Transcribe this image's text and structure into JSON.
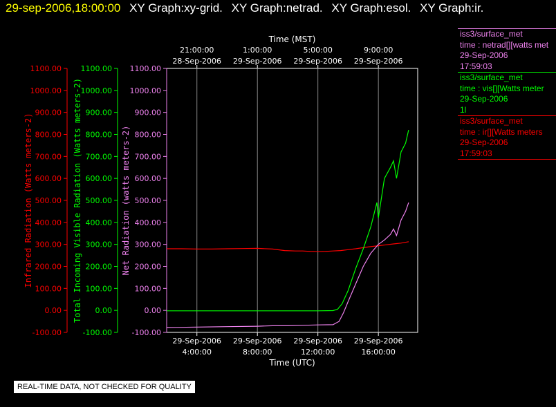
{
  "header": {
    "timestamp": "29-sep-2006,18:00:00",
    "graphs": [
      "XY Graph:xy-grid.",
      "XY Graph:netrad.",
      "XY Graph:esol.",
      "XY Graph:ir."
    ]
  },
  "legend": [
    {
      "title": "iss3/surface_met",
      "var": "time : netrad[][watts met",
      "date": "29-Sep-2006",
      "time": "17:59:03",
      "color": "#ee82ee"
    },
    {
      "title": "iss3/surface_met",
      "var": "time : vis[][Watts meter",
      "date": "29-Sep-2006",
      "time": "1l",
      "color": "#00ff00"
    },
    {
      "title": "iss3/surface_met",
      "var": "time : ir[][Watts meters",
      "date": "29-Sep-2006",
      "time": "17:59:03",
      "color": "#ff0000"
    }
  ],
  "note": "REAL-TIME DATA, NOT CHECKED FOR QUALITY",
  "chart_data": {
    "type": "line",
    "x_unit": "hours UTC since 2006-09-29 00:00",
    "xlim": [
      2.0,
      18.6
    ],
    "ylim": [
      -100,
      1100
    ],
    "grid": true,
    "y_ticks": [
      -100,
      0,
      100,
      200,
      300,
      400,
      500,
      600,
      700,
      800,
      900,
      1000,
      1100
    ],
    "y_tick_labels": [
      "-100.00",
      "0.00",
      "100.00",
      "200.00",
      "300.00",
      "400.00",
      "500.00",
      "600.00",
      "700.00",
      "800.00",
      "900.00",
      "1000.00",
      "1100.00"
    ],
    "y_axes": [
      {
        "label": "Infrared Radiation (Watts meters-2)",
        "color": "#ff0000"
      },
      {
        "label": "Total Incoming Visible Radiation (Watts meters-2)",
        "color": "#00ff00"
      },
      {
        "label": "Net Radiation (watts meters-2)",
        "color": "#ee82ee"
      }
    ],
    "x_axis_bottom": {
      "label": "Time (UTC)",
      "ticks": [
        {
          "x": 4,
          "date": "29-Sep-2006",
          "time": "4:00:00"
        },
        {
          "x": 8,
          "date": "29-Sep-2006",
          "time": "8:00:00"
        },
        {
          "x": 12,
          "date": "29-Sep-2006",
          "time": "12:00:00"
        },
        {
          "x": 16,
          "date": "29-Sep-2006",
          "time": "16:00:00"
        }
      ]
    },
    "x_axis_top": {
      "label": "Time (MST)",
      "ticks": [
        {
          "x": 4,
          "time": "21:00:00",
          "date": "28-Sep-2006"
        },
        {
          "x": 8,
          "time": "1:00:00",
          "date": "29-Sep-2006"
        },
        {
          "x": 12,
          "time": "5:00:00",
          "date": "29-Sep-2006"
        },
        {
          "x": 16,
          "time": "9:00:00",
          "date": "29-Sep-2006"
        }
      ]
    },
    "series": [
      {
        "name": "ir",
        "color": "#ff0000",
        "x": [
          2.0,
          3.0,
          4.0,
          5.0,
          6.0,
          7.0,
          8.0,
          9.0,
          9.8,
          10.5,
          11.0,
          11.5,
          12.0,
          12.5,
          13.0,
          13.5,
          14.0,
          14.5,
          15.0,
          15.5,
          16.0,
          16.5,
          17.0,
          17.5,
          18.0
        ],
        "y": [
          280,
          280,
          279,
          279,
          280,
          281,
          282,
          279,
          272,
          270,
          270,
          268,
          267,
          268,
          270,
          272,
          276,
          280,
          285,
          290,
          294,
          298,
          302,
          306,
          312
        ]
      },
      {
        "name": "vis",
        "color": "#00ff00",
        "x": [
          2.0,
          4.0,
          6.0,
          8.0,
          10.0,
          12.0,
          13.0,
          13.3,
          13.6,
          14.0,
          14.5,
          15.0,
          15.5,
          15.9,
          16.0,
          16.4,
          16.8,
          17.0,
          17.2,
          17.5,
          17.8,
          18.0
        ],
        "y": [
          -2,
          -2,
          -2,
          -2,
          -2,
          -2,
          -1,
          5,
          30,
          90,
          190,
          280,
          380,
          490,
          420,
          600,
          650,
          680,
          600,
          720,
          760,
          820
        ]
      },
      {
        "name": "netrad",
        "color": "#ee82ee",
        "x": [
          2.0,
          4.0,
          6.0,
          8.0,
          9.0,
          10.0,
          11.0,
          12.0,
          13.0,
          13.4,
          13.7,
          14.0,
          14.5,
          15.0,
          15.5,
          16.0,
          16.4,
          16.8,
          17.0,
          17.2,
          17.5,
          17.8,
          18.0
        ],
        "y": [
          -78,
          -76,
          -74,
          -72,
          -70,
          -70,
          -68,
          -66,
          -65,
          -50,
          -10,
          40,
          120,
          200,
          260,
          300,
          320,
          345,
          370,
          340,
          410,
          450,
          490
        ]
      }
    ]
  }
}
